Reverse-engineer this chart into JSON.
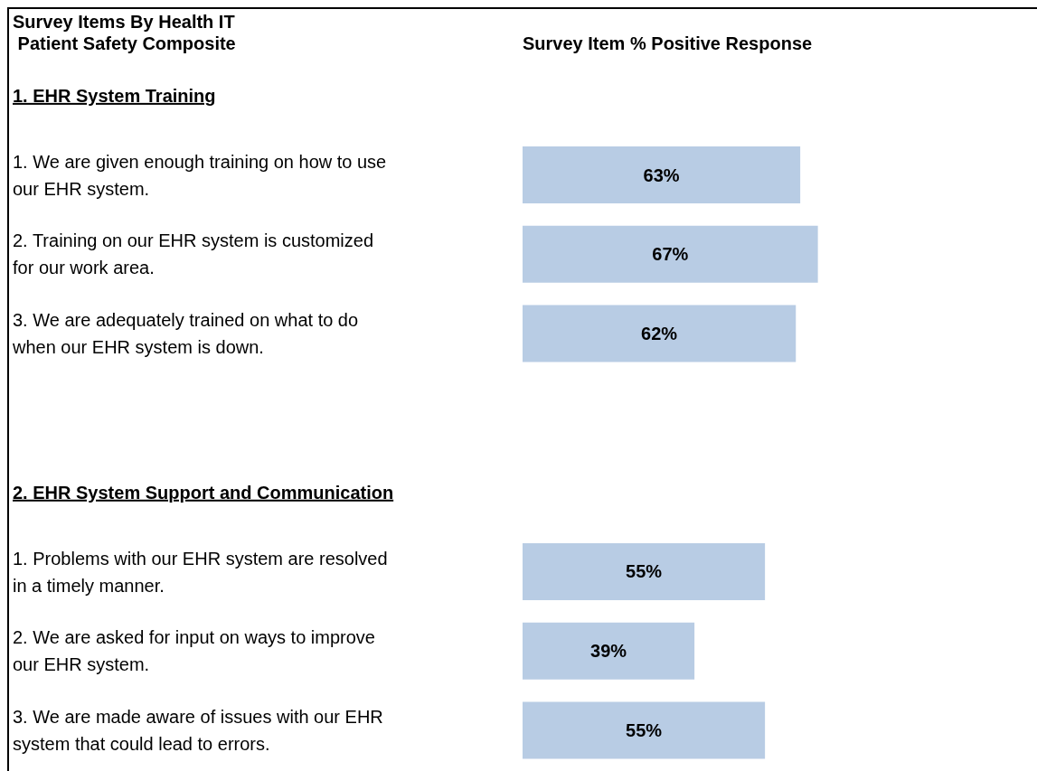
{
  "chart_data": {
    "type": "bar",
    "orientation": "horizontal",
    "ylabel": "Survey Items By Health IT\n Patient Safety Composite",
    "xlabel": "Survey Item % Positive Response",
    "categories": [
      "1. EHR System Training",
      "1. We are given enough training on how to use our EHR system.",
      "2. Training on our EHR system is customized for our work area.",
      "3. We are adequately trained on what to do when our EHR system is down.",
      null,
      "2. EHR System Support and Communication",
      "1. Problems with our EHR system are resolved in a timely manner.",
      "2. We are asked for input on ways to improve our EHR system.",
      "3. We are made aware of issues with our EHR system that could lead to errors."
    ],
    "values": [
      null,
      63,
      67,
      62,
      null,
      null,
      55,
      39,
      55
    ],
    "value_labels": [
      null,
      "63%",
      "67%",
      "62%",
      null,
      null,
      "55%",
      "39%",
      "55%"
    ],
    "color": "#b8cce4",
    "grid": false,
    "legend": false
  }
}
